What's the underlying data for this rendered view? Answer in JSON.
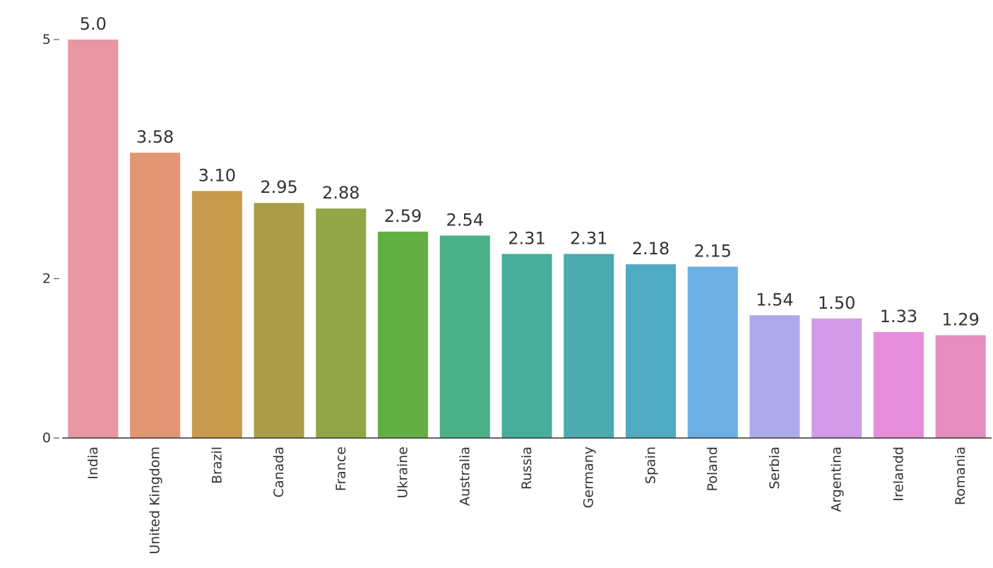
{
  "chart_data": {
    "type": "bar",
    "title": "",
    "xlabel": "",
    "ylabel": "",
    "categories": [
      "India",
      "United Kingdom",
      "Brazil",
      "Canada",
      "France",
      "Ukraine",
      "Australia",
      "Russia",
      "Germany",
      "Spain",
      "Poland",
      "Serbia",
      "Argentina",
      "Irelandd",
      "Romania"
    ],
    "values": [
      5.0,
      3.58,
      3.1,
      2.95,
      2.88,
      2.59,
      2.54,
      2.31,
      2.31,
      2.18,
      2.15,
      1.54,
      1.5,
      1.33,
      1.29
    ],
    "value_labels": [
      "5.0",
      "3.58",
      "3.10",
      "2.95",
      "2.88",
      "2.59",
      "2.54",
      "2.31",
      "2.31",
      "2.18",
      "2.15",
      "1.54",
      "1.50",
      "1.33",
      "1.29"
    ],
    "colors": [
      "#e896a2",
      "#e39673",
      "#c79b4b",
      "#aa9d47",
      "#93a647",
      "#62b044",
      "#4ab085",
      "#48ad9b",
      "#4cabaf",
      "#4fabc2",
      "#6cafe2",
      "#adaaea",
      "#d29be7",
      "#e68edc",
      "#e68ec0"
    ],
    "y_ticks": [
      {
        "value": 0,
        "label": "0"
      },
      {
        "value": 2,
        "label": "2"
      },
      {
        "value": 5,
        "label": "5"
      }
    ],
    "grid": false,
    "legend": "none"
  }
}
